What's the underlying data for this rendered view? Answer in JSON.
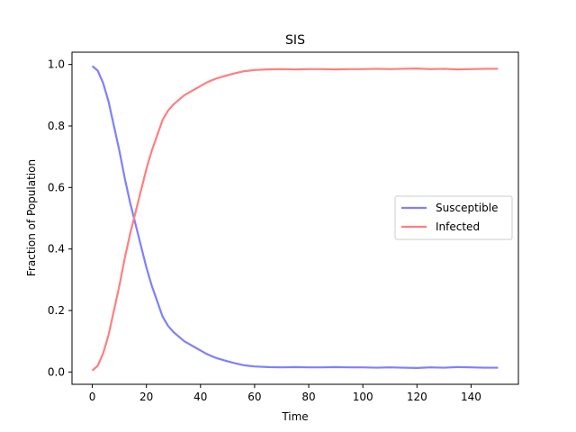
{
  "chart_data": {
    "type": "line",
    "title": "SIS",
    "xlabel": "Time",
    "ylabel": "Fraction of Population",
    "xlim": [
      -7.5,
      157.5
    ],
    "ylim": [
      -0.04,
      1.04
    ],
    "xticks": [
      0,
      20,
      40,
      60,
      80,
      100,
      120,
      140
    ],
    "yticks": [
      0.0,
      0.2,
      0.4,
      0.6,
      0.8,
      1.0
    ],
    "xtick_labels": [
      "0",
      "20",
      "40",
      "60",
      "80",
      "100",
      "120",
      "140"
    ],
    "ytick_labels": [
      "0.0",
      "0.2",
      "0.4",
      "0.6",
      "0.8",
      "1.0"
    ],
    "grid": false,
    "legend_position": "center-right",
    "x": [
      0,
      2,
      4,
      6,
      8,
      10,
      12,
      14,
      16,
      18,
      20,
      22,
      24,
      26,
      28,
      30,
      32,
      34,
      36,
      38,
      40,
      42,
      44,
      46,
      48,
      50,
      52,
      54,
      56,
      58,
      60,
      65,
      70,
      75,
      80,
      85,
      90,
      95,
      100,
      105,
      110,
      115,
      120,
      125,
      130,
      135,
      140,
      145,
      150
    ],
    "series": [
      {
        "name": "Susceptible",
        "color": "#7f7fff",
        "values": [
          0.995,
          0.98,
          0.94,
          0.88,
          0.8,
          0.72,
          0.63,
          0.55,
          0.48,
          0.41,
          0.34,
          0.28,
          0.23,
          0.18,
          0.15,
          0.13,
          0.115,
          0.1,
          0.09,
          0.08,
          0.07,
          0.06,
          0.052,
          0.045,
          0.04,
          0.035,
          0.03,
          0.026,
          0.022,
          0.02,
          0.018,
          0.016,
          0.015,
          0.016,
          0.015,
          0.015,
          0.016,
          0.015,
          0.015,
          0.014,
          0.015,
          0.014,
          0.013,
          0.015,
          0.014,
          0.016,
          0.015,
          0.014,
          0.014
        ]
      },
      {
        "name": "Infected",
        "color": "#ff7f7f",
        "values": [
          0.005,
          0.02,
          0.06,
          0.12,
          0.2,
          0.28,
          0.37,
          0.45,
          0.52,
          0.59,
          0.66,
          0.72,
          0.77,
          0.82,
          0.85,
          0.87,
          0.885,
          0.9,
          0.91,
          0.92,
          0.93,
          0.94,
          0.948,
          0.955,
          0.96,
          0.965,
          0.97,
          0.974,
          0.978,
          0.98,
          0.982,
          0.984,
          0.985,
          0.984,
          0.985,
          0.985,
          0.984,
          0.985,
          0.985,
          0.986,
          0.985,
          0.986,
          0.987,
          0.985,
          0.986,
          0.984,
          0.985,
          0.986,
          0.986
        ]
      }
    ]
  }
}
